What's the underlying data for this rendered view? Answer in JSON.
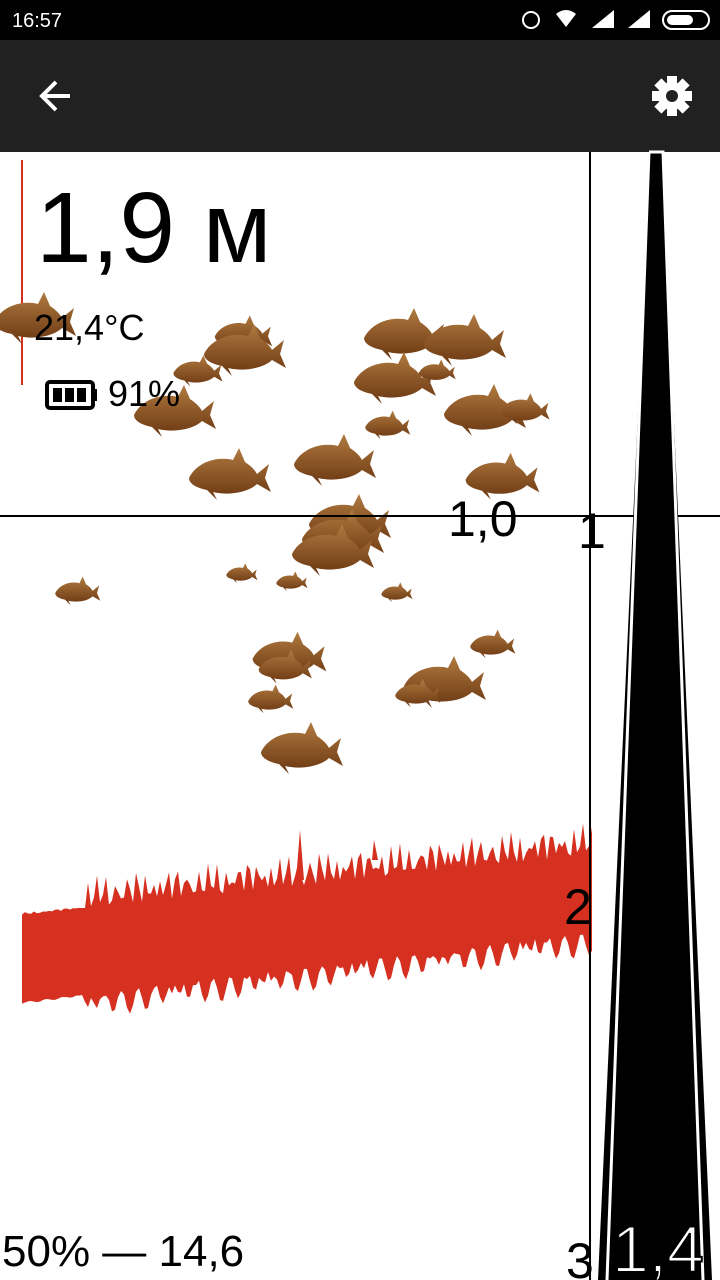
{
  "status_bar": {
    "time": "16:57"
  },
  "sonar": {
    "depth": "1,9 м",
    "temperature": "21,4°C",
    "battery": "91%",
    "marker_depth": "1,0",
    "scale_labels": [
      "1",
      "2",
      "3"
    ],
    "footer_left": "50% — 14,6",
    "footer_right": "1,4"
  }
}
